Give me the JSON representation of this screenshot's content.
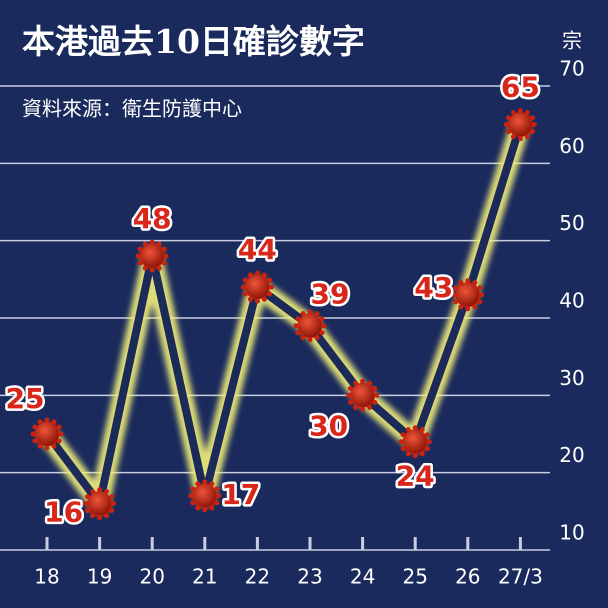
{
  "chart_data": {
    "type": "line",
    "title": "本港過去10日確診數字",
    "subtitle": "資料來源：衛生防護中心",
    "y_unit": "宗",
    "categories": [
      "18",
      "19",
      "20",
      "21",
      "22",
      "23",
      "24",
      "25",
      "26",
      "27/3"
    ],
    "values": [
      25,
      16,
      48,
      17,
      44,
      39,
      30,
      24,
      43,
      65
    ],
    "color": "#1c2a5a",
    "glow_color": "#f2f07a",
    "marker_color": "#c9230f",
    "label_color": "#d8261a",
    "ylim": [
      10,
      70
    ],
    "yticks": [
      10,
      20,
      30,
      40,
      50,
      60,
      70
    ],
    "grid": true
  }
}
